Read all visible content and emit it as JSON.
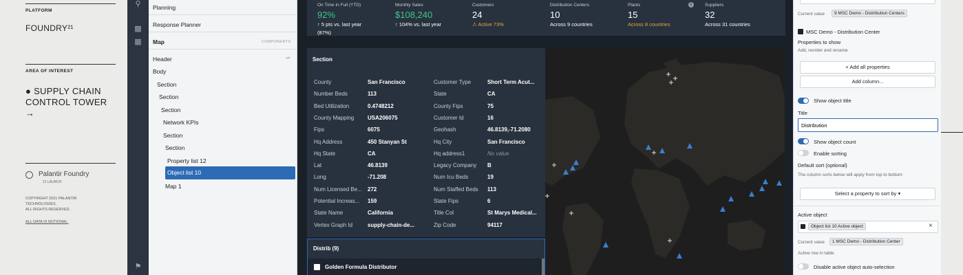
{
  "brand": {
    "platform": "PLATFORM",
    "product": "FOUNDRY²¹",
    "area_label": "AREA OF INTEREST",
    "area_line1": "● SUPPLY CHAIN",
    "area_line2": "CONTROL TOWER",
    "arrow": "→",
    "logo_text": "Palantir Foundry",
    "launch": "21 LAUNCH",
    "copyright1": "COPYRIGHT 2021 PALANTIR",
    "copyright2": "TECHNOLOGIES,",
    "copyright3": "ALL RIGHTS RESERVED.",
    "notional": "ALL DATA IS NOTIONAL."
  },
  "tree": {
    "planning": "Planning",
    "response_planner": "Response Planner",
    "map": "Map",
    "components": "COMPONENTS",
    "items": [
      {
        "label": "Header"
      },
      {
        "label": "Body"
      },
      {
        "label": "Section"
      },
      {
        "label": "Section"
      },
      {
        "label": "Section"
      },
      {
        "label": "Network KPIs"
      },
      {
        "label": "Section"
      },
      {
        "label": "Section"
      },
      {
        "label": "Property list 12"
      },
      {
        "label": "Object list 10"
      },
      {
        "label": "Map 1"
      }
    ]
  },
  "kpis": [
    {
      "label": "On Time In Full (YTD)",
      "value": "92%",
      "sub1": "↑ 5 pts vs. last year",
      "sub2": "(87%)"
    },
    {
      "label": "Monthly Sales",
      "value": "$108,240",
      "sub1": "↑ 104% vs. last year"
    },
    {
      "label": "Customers",
      "value": "24",
      "sub1": "⚠ Active 73%"
    },
    {
      "label": "Distribution Centers",
      "value": "10",
      "sub1": "Across 9 countries"
    },
    {
      "label": "Plants",
      "value": "15",
      "sub1": "Across 8 countries"
    },
    {
      "label": "Suppliers",
      "value": "32",
      "sub1": "Across 31 countries"
    }
  ],
  "section": {
    "title": "Section",
    "left": [
      {
        "k": "County",
        "v": "San Francisco"
      },
      {
        "k": "Number Beds",
        "v": "113"
      },
      {
        "k": "Bed Utilization",
        "v": "0.4748212"
      },
      {
        "k": "County Mapping",
        "v": "USA206075"
      },
      {
        "k": "Fips",
        "v": "6075"
      },
      {
        "k": "Hq Address",
        "v": "450 Stanyan St"
      },
      {
        "k": "Hq State",
        "v": "CA"
      },
      {
        "k": "Lat",
        "v": "46.8139"
      },
      {
        "k": "Long",
        "v": "-71.208"
      },
      {
        "k": "Num Licensed Be...",
        "v": "272"
      },
      {
        "k": "Potential Increas...",
        "v": "159"
      },
      {
        "k": "State Name",
        "v": "California"
      },
      {
        "k": "Vertex Graph Id",
        "v": "supply-chain-de..."
      }
    ],
    "right": [
      {
        "k": "Customer Type",
        "v": "Short Term Acut..."
      },
      {
        "k": "State",
        "v": "CA"
      },
      {
        "k": "County Fips",
        "v": "75"
      },
      {
        "k": "Customer Id",
        "v": "16"
      },
      {
        "k": "Geohash",
        "v": "46.8139,-71.2080"
      },
      {
        "k": "Hq City",
        "v": "San Francisco"
      },
      {
        "k": "Hq address1",
        "v": "No value"
      },
      {
        "k": "Legacy Company",
        "v": "B"
      },
      {
        "k": "Num Icu Beds",
        "v": "19"
      },
      {
        "k": "Num Staffed Beds",
        "v": "113"
      },
      {
        "k": "State Fips",
        "v": "6"
      },
      {
        "k": "Title Col",
        "v": "St Marys Medical..."
      },
      {
        "k": "Zip Code",
        "v": "94117"
      }
    ]
  },
  "distrib": {
    "title": "Distrib (9)",
    "first_item": "Golden Formula Distributor"
  },
  "config": {
    "current_value_label": "Current value",
    "current_value_chip": "9  MSC Demo - Distribution Centers",
    "object_type": "MSC Demo - Distribution Center",
    "properties_to_show": "Properties to show",
    "add_reorder": "Add, reorder and rename",
    "add_all": "+  Add all properties",
    "add_column": "Add column...",
    "show_title": "Show object title",
    "title_label": "Title",
    "title_value": "Distribution",
    "show_count": "Show object count",
    "enable_sorting": "Enable sorting",
    "default_sort": "Default sort (optional)",
    "sort_help": "The column sorts below will apply from top to bottom:",
    "select_sort": "Select a property to sort by  ▾",
    "active_object": "Active object",
    "active_chip": "Object list 10 Active object",
    "current_value_chip2": "1  MSC Demo - Distribution Center",
    "active_row": "Active row in table",
    "disable_auto": "Disable active object auto-selection"
  }
}
